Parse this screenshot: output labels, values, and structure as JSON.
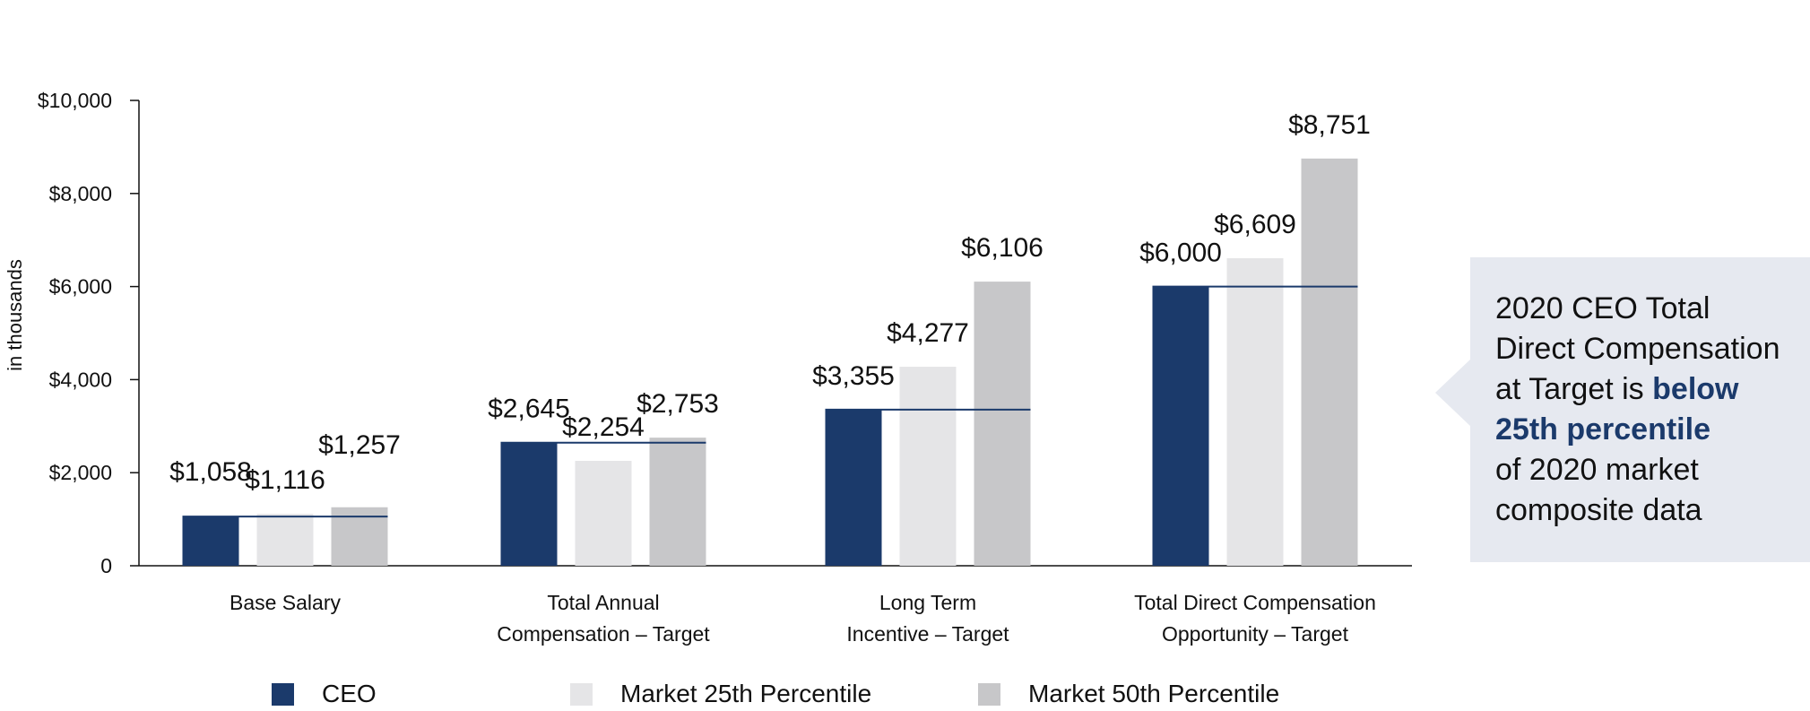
{
  "chart_data": {
    "type": "bar",
    "ylabel": "in thousands",
    "ylim": [
      0,
      10000
    ],
    "yticks": [
      {
        "value": 0,
        "label": "0"
      },
      {
        "value": 2000,
        "label": "$2,000"
      },
      {
        "value": 4000,
        "label": "$4,000"
      },
      {
        "value": 6000,
        "label": "$6,000"
      },
      {
        "value": 8000,
        "label": "$8,000"
      },
      {
        "value": 10000,
        "label": "$10,000"
      }
    ],
    "categories": [
      [
        "Base Salary"
      ],
      [
        "Total Annual",
        "Compensation – Target"
      ],
      [
        "Long Term",
        "Incentive – Target"
      ],
      [
        "Total Direct Compensation",
        "Opportunity – Target"
      ]
    ],
    "series": [
      {
        "name": "CEO",
        "color": "#1b3a6b",
        "values": [
          1058,
          2645,
          3355,
          6000
        ],
        "labels": [
          "$1,058",
          "$2,645",
          "$3,355",
          "$6,000"
        ]
      },
      {
        "name": "Market 25th Percentile",
        "color": "#e5e5e7",
        "values": [
          1116,
          2254,
          4277,
          6609
        ],
        "labels": [
          "$1,116",
          "$2,254",
          "$4,277",
          "$6,609"
        ]
      },
      {
        "name": "Market 50th Percentile",
        "color": "#c7c7c9",
        "values": [
          1257,
          2753,
          6106,
          8751
        ],
        "labels": [
          "$1,257",
          "$2,753",
          "$6,106",
          "$8,751"
        ]
      }
    ],
    "reference_line": {
      "series": "CEO",
      "color": "#1b3a6b"
    },
    "legend_position": "bottom"
  },
  "callout": {
    "line1": "2020 CEO Total",
    "line2": "Direct Compensation",
    "line3_prefix": "at Target is ",
    "highlight1": "below",
    "highlight2": "25th percentile",
    "line5": "of 2020 market",
    "line6": "composite data",
    "background_color": "#e6e9f0",
    "highlight_color": "#1b3a6b"
  }
}
